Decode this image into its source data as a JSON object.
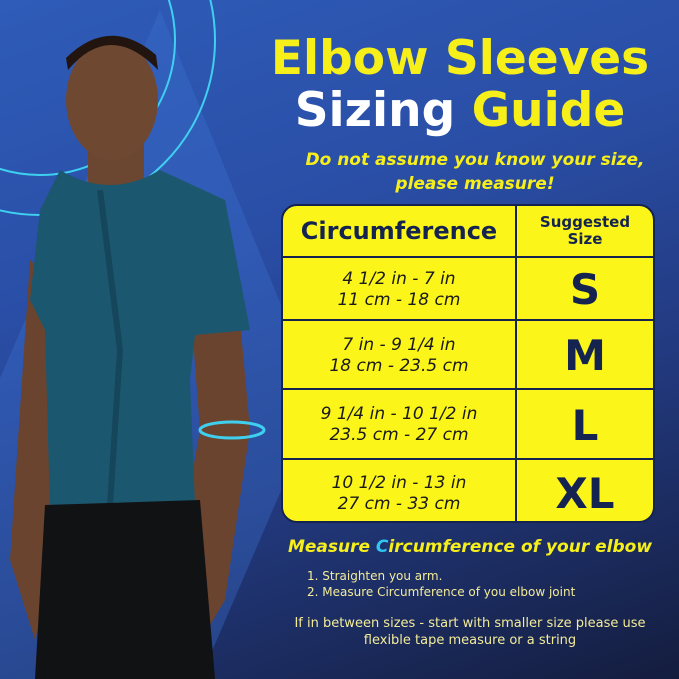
{
  "title": {
    "line1": "Elbow Sleeves",
    "line2_a": "Sizing ",
    "line2_b": "Guide"
  },
  "warning": {
    "line1": "Do not assume you know your size,",
    "line2": "please measure!"
  },
  "table": {
    "header": {
      "circumference": "Circumference",
      "size_line1": "Suggested",
      "size_line2": "Size"
    },
    "rows": [
      {
        "inches": "4 1/2 in - 7 in",
        "cm": "11 cm - 18 cm",
        "size": "S"
      },
      {
        "inches": "7 in - 9 1/4 in",
        "cm": "18 cm - 23.5 cm",
        "size": "M"
      },
      {
        "inches": "9 1/4 in - 10 1/2 in",
        "cm": "23.5 cm - 27 cm",
        "size": "L"
      },
      {
        "inches": "10 1/2 in - 13 in",
        "cm": "27 cm - 33 cm",
        "size": "XL"
      }
    ]
  },
  "measure": {
    "a": "Measure ",
    "c": "C",
    "b": "ircumference of your elbow"
  },
  "steps": [
    "1. Straighten you arm.",
    "2. Measure Circumference of you elbow joint"
  ],
  "note": {
    "line1": "If in between sizes - start with smaller size please use",
    "line2": "flexible tape measure or a string"
  },
  "colors": {
    "yellow": "#f7ef1a",
    "navy": "#14234f",
    "cyan": "#2ec8f0"
  }
}
